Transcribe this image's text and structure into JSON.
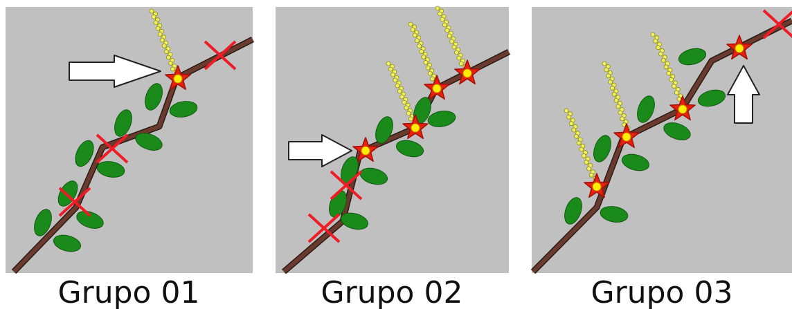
{
  "panels": [
    {
      "label": "Grupo 01"
    },
    {
      "label": "Grupo 02"
    },
    {
      "label": "Grupo 03"
    }
  ]
}
